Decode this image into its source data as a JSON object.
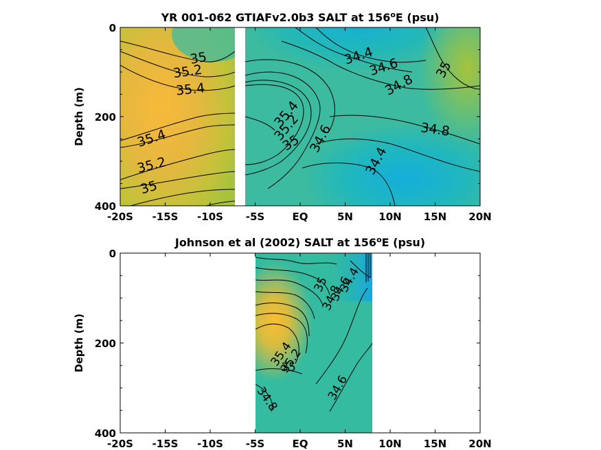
{
  "chart_data": [
    {
      "type": "contour",
      "title": "YR 001-062 GTIAFv2.0b3 SALT at 156",
      "title_sup": "o",
      "title_suffix": "E (psu)",
      "ylabel": "Depth (m)",
      "xlabel": "",
      "x_ticks": [
        "-20S",
        "-15S",
        "-10S",
        "-5S",
        "EQ",
        "5N",
        "10N",
        "15N",
        "20N"
      ],
      "x_tick_values": [
        -20,
        -15,
        -10,
        -5,
        0,
        5,
        10,
        15,
        20
      ],
      "y_ticks": [
        "0",
        "200",
        "400"
      ],
      "y_tick_values": [
        0,
        200,
        400
      ],
      "xlim": [
        -20,
        20
      ],
      "ylim": [
        0,
        400
      ],
      "y_reversed": true,
      "data_gap": [
        -7,
        -6.3
      ],
      "contour_labels": [
        {
          "text": "35",
          "lat": -11.3,
          "depth": 70,
          "rotation": -10
        },
        {
          "text": "35.2",
          "lat": -12.5,
          "depth": 100,
          "rotation": -8
        },
        {
          "text": "35.4",
          "lat": -12.2,
          "depth": 140,
          "rotation": -6
        },
        {
          "text": "35.4",
          "lat": -16.5,
          "depth": 250,
          "rotation": -18
        },
        {
          "text": "35.2",
          "lat": -16.5,
          "depth": 310,
          "rotation": -14
        },
        {
          "text": "35",
          "lat": -16.8,
          "depth": 360,
          "rotation": -16
        },
        {
          "text": "34.4",
          "lat": 6.5,
          "depth": 65,
          "rotation": -18
        },
        {
          "text": "34.6",
          "lat": 9.3,
          "depth": 90,
          "rotation": -18
        },
        {
          "text": "34.8",
          "lat": 11,
          "depth": 130,
          "rotation": -28
        },
        {
          "text": "35",
          "lat": 16,
          "depth": 95,
          "rotation": -62
        },
        {
          "text": "34.8",
          "lat": 15,
          "depth": 230,
          "rotation": 8
        },
        {
          "text": "35.4",
          "lat": -1.5,
          "depth": 195,
          "rotation": -50
        },
        {
          "text": "35.2",
          "lat": -1.5,
          "depth": 225,
          "rotation": -50
        },
        {
          "text": "35",
          "lat": -1,
          "depth": 260,
          "rotation": -32
        },
        {
          "text": "34.6",
          "lat": 2.3,
          "depth": 250,
          "rotation": -62
        },
        {
          "text": "34.4",
          "lat": 8.5,
          "depth": 300,
          "rotation": -62
        }
      ]
    },
    {
      "type": "contour",
      "title": "Johnson et al (2002) SALT at 156",
      "title_sup": "o",
      "title_suffix": "E (psu)",
      "ylabel": "Depth (m)",
      "xlabel": "",
      "x_ticks": [
        "-20S",
        "-15S",
        "-10S",
        "-5S",
        "EQ",
        "5N",
        "10N",
        "15N",
        "20N"
      ],
      "x_tick_values": [
        -20,
        -15,
        -10,
        -5,
        0,
        5,
        10,
        15,
        20
      ],
      "y_ticks": [
        "0",
        "200",
        "400"
      ],
      "y_tick_values": [
        0,
        200,
        400
      ],
      "xlim": [
        -20,
        20
      ],
      "ylim": [
        0,
        400
      ],
      "y_reversed": true,
      "data_range": [
        -5,
        8
      ],
      "contour_labels": [
        {
          "text": "34.4",
          "lat": 5.5,
          "depth": 60,
          "rotation": -60
        },
        {
          "text": "34.6",
          "lat": 4.5,
          "depth": 80,
          "rotation": -60
        },
        {
          "text": "34.8",
          "lat": 3.5,
          "depth": 100,
          "rotation": -65
        },
        {
          "text": "35",
          "lat": 2.3,
          "depth": 70,
          "rotation": -65
        },
        {
          "text": "35.4",
          "lat": -2.1,
          "depth": 225,
          "rotation": -55
        },
        {
          "text": "35.2",
          "lat": -1,
          "depth": 240,
          "rotation": -55
        },
        {
          "text": "35",
          "lat": -1.3,
          "depth": 255,
          "rotation": 0
        },
        {
          "text": "34.8",
          "lat": -3.7,
          "depth": 325,
          "rotation": 55
        },
        {
          "text": "34.6",
          "lat": 4.2,
          "depth": 300,
          "rotation": -60
        }
      ]
    }
  ]
}
